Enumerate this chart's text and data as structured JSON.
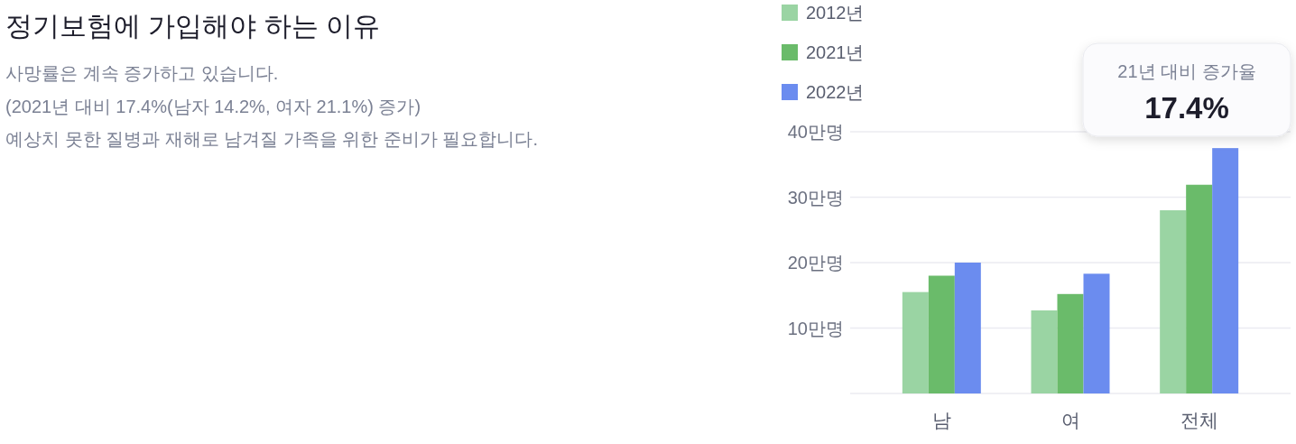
{
  "chart_data": {
    "type": "bar",
    "title": "정기보험에 가입해야 하는 이유",
    "subtitle": "사망률은 계속 증가하고 있습니다.\n(2021년 대비 17.4%(남자 14.2%, 여자 21.1%) 증가)\n예상치 못한 질병과 재해로 남겨질 가족을 위한 준비가 필요합니다.",
    "categories": [
      "남",
      "여",
      "전체"
    ],
    "series": [
      {
        "name": "2012년",
        "color": "#9ad4a3",
        "values": [
          15.5,
          12.7,
          28.0
        ]
      },
      {
        "name": "2021년",
        "color": "#6abb6a",
        "values": [
          18.0,
          15.2,
          31.9
        ]
      },
      {
        "name": "2022년",
        "color": "#6b8cef",
        "values": [
          20.0,
          18.3,
          37.5
        ]
      }
    ],
    "ylim": [
      0,
      40
    ],
    "yticks": [
      {
        "value": 0,
        "label": null
      },
      {
        "value": 10,
        "label": "10만명"
      },
      {
        "value": 20,
        "label": "20만명"
      },
      {
        "value": 30,
        "label": "30만명"
      },
      {
        "value": 40,
        "label": "40만명"
      }
    ],
    "grid": "y",
    "legend": "top left",
    "annotations": [
      "21년 대비 증가율",
      "17.4%"
    ]
  }
}
